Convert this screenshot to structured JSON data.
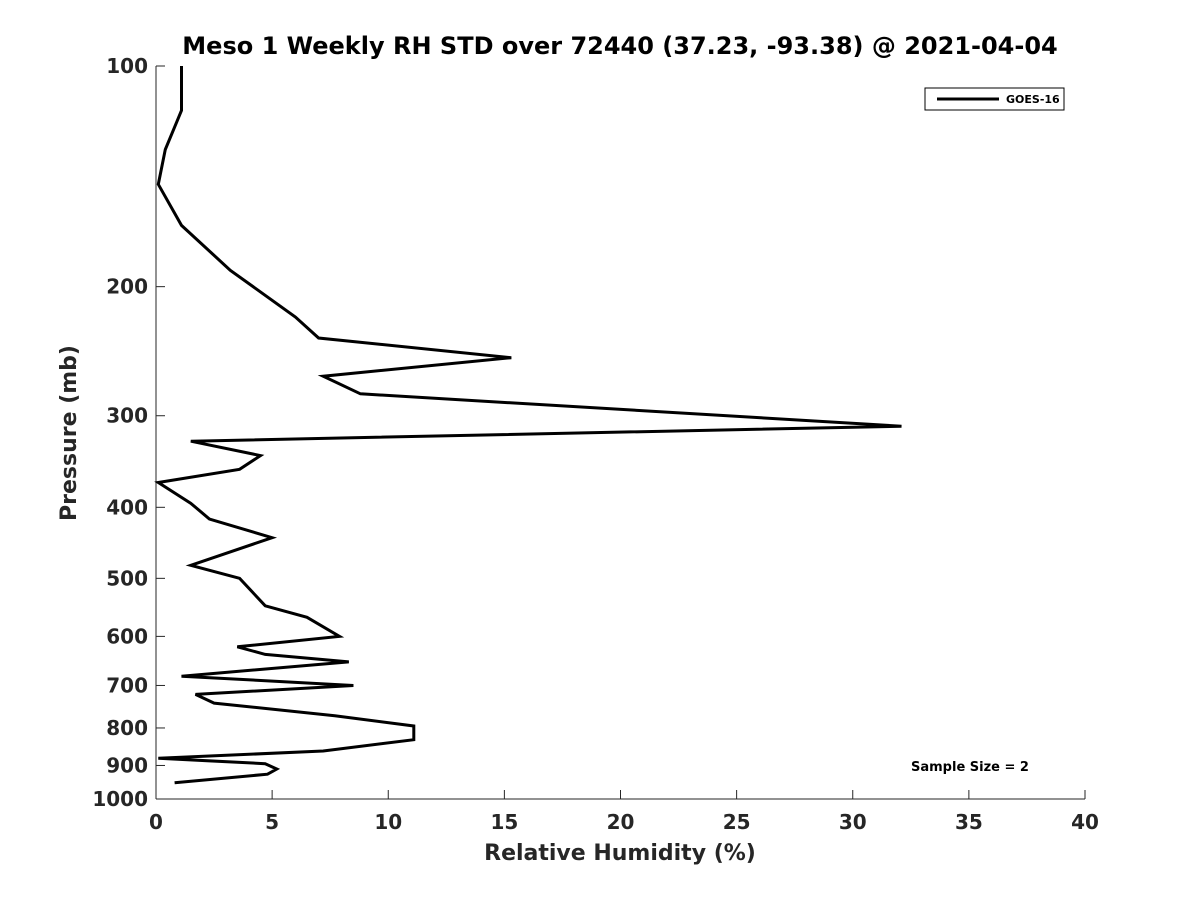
{
  "chart_data": {
    "type": "line",
    "orientation": "vertical-profile",
    "title": "Meso 1 Weekly RH STD over 72440 (37.23, -93.38) @ 2021-04-04",
    "xlabel": "Relative Humidity (%)",
    "ylabel": "Pressure (mb)",
    "xlim": [
      0,
      40
    ],
    "ylim": [
      1000,
      100
    ],
    "yscale": "log",
    "y_reversed": true,
    "grid": false,
    "legend_position": "top-right",
    "xticks": [
      0,
      5,
      10,
      15,
      20,
      25,
      30,
      35,
      40
    ],
    "xtick_labels": [
      "0",
      "5",
      "10",
      "15",
      "20",
      "25",
      "30",
      "35",
      "40"
    ],
    "yticks": [
      100,
      200,
      300,
      400,
      500,
      600,
      700,
      800,
      900,
      1000
    ],
    "ytick_labels": [
      "100",
      "200",
      "300",
      "400",
      "500",
      "600",
      "700",
      "800",
      "900",
      "1000"
    ],
    "annotation": "Sample Size = 2",
    "series": [
      {
        "name": "GOES-16",
        "color": "#000000",
        "x": [
          1.1,
          1.1,
          0.4,
          0.1,
          1.1,
          3.2,
          6.0,
          7.0,
          15.3,
          7.2,
          8.8,
          32.1,
          1.5,
          4.5,
          3.6,
          0.1,
          1.5,
          2.3,
          5.0,
          1.5,
          3.6,
          4.7,
          6.5,
          7.9,
          3.5,
          4.7,
          8.3,
          1.1,
          8.5,
          1.7,
          2.5,
          7.7,
          11.1,
          11.1,
          7.2,
          0.1,
          4.7,
          5.2,
          4.8,
          0.8
        ],
        "y": [
          100,
          115,
          130,
          145,
          165,
          190,
          220,
          235,
          250,
          265,
          280,
          310,
          325,
          340,
          355,
          370,
          395,
          415,
          440,
          480,
          500,
          545,
          565,
          600,
          620,
          635,
          650,
          680,
          700,
          720,
          740,
          770,
          795,
          830,
          860,
          880,
          895,
          910,
          925,
          950
        ]
      }
    ]
  }
}
